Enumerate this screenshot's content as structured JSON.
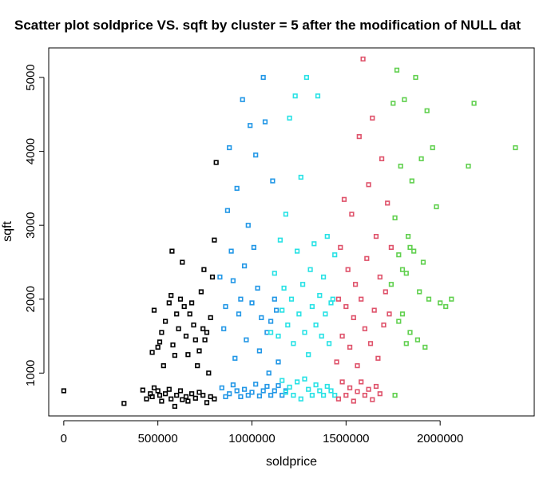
{
  "chart_data": {
    "type": "scatter",
    "title": "Scatter plot soldprice VS. sqft by cluster = 5 after the modification of NULL dat",
    "xlabel": "soldprice",
    "ylabel": "sqft",
    "xlim": [
      -80000,
      2500000
    ],
    "ylim": [
      420,
      5400
    ],
    "x_ticks": [
      0,
      500000,
      1000000,
      1500000,
      2000000
    ],
    "x_tick_labels": [
      "0",
      "500000",
      "1000000",
      "1500000",
      "2000000"
    ],
    "y_ticks": [
      1000,
      2000,
      3000,
      4000,
      5000
    ],
    "y_tick_labels": [
      "1000",
      "2000",
      "3000",
      "4000",
      "5000"
    ],
    "grid": false,
    "legend": "none",
    "series": [
      {
        "color": "#000000",
        "points": [
          [
            0,
            760
          ],
          [
            320,
            590
          ],
          [
            420,
            770
          ],
          [
            440,
            650
          ],
          [
            460,
            720
          ],
          [
            470,
            680
          ],
          [
            480,
            800
          ],
          [
            500,
            760
          ],
          [
            510,
            700
          ],
          [
            520,
            620
          ],
          [
            540,
            720
          ],
          [
            560,
            780
          ],
          [
            570,
            650
          ],
          [
            590,
            550
          ],
          [
            600,
            700
          ],
          [
            620,
            760
          ],
          [
            630,
            640
          ],
          [
            650,
            680
          ],
          [
            660,
            620
          ],
          [
            680,
            720
          ],
          [
            700,
            660
          ],
          [
            720,
            740
          ],
          [
            740,
            700
          ],
          [
            760,
            600
          ],
          [
            780,
            680
          ],
          [
            800,
            650
          ],
          [
            470,
            1280
          ],
          [
            480,
            1850
          ],
          [
            500,
            1350
          ],
          [
            510,
            1420
          ],
          [
            520,
            1550
          ],
          [
            530,
            1100
          ],
          [
            540,
            1700
          ],
          [
            560,
            1950
          ],
          [
            570,
            2050
          ],
          [
            575,
            2650
          ],
          [
            580,
            1380
          ],
          [
            590,
            1240
          ],
          [
            600,
            1800
          ],
          [
            610,
            1600
          ],
          [
            620,
            2000
          ],
          [
            630,
            2500
          ],
          [
            640,
            1900
          ],
          [
            650,
            1500
          ],
          [
            660,
            1250
          ],
          [
            670,
            1800
          ],
          [
            680,
            1950
          ],
          [
            690,
            1650
          ],
          [
            700,
            1450
          ],
          [
            710,
            1100
          ],
          [
            720,
            1300
          ],
          [
            730,
            2100
          ],
          [
            740,
            1600
          ],
          [
            745,
            2400
          ],
          [
            750,
            1450
          ],
          [
            760,
            1550
          ],
          [
            770,
            1000
          ],
          [
            780,
            1750
          ],
          [
            790,
            2300
          ],
          [
            800,
            2800
          ],
          [
            810,
            3850
          ]
        ]
      },
      {
        "color": "#2297e6",
        "points": [
          [
            830,
            2300
          ],
          [
            850,
            1600
          ],
          [
            860,
            1900
          ],
          [
            870,
            3200
          ],
          [
            880,
            4050
          ],
          [
            890,
            2650
          ],
          [
            900,
            2250
          ],
          [
            910,
            1200
          ],
          [
            920,
            3500
          ],
          [
            930,
            1800
          ],
          [
            940,
            2000
          ],
          [
            950,
            4700
          ],
          [
            960,
            2450
          ],
          [
            970,
            1450
          ],
          [
            980,
            3000
          ],
          [
            990,
            4350
          ],
          [
            1000,
            1950
          ],
          [
            1010,
            2700
          ],
          [
            1020,
            3950
          ],
          [
            1030,
            2150
          ],
          [
            1040,
            1300
          ],
          [
            1050,
            1750
          ],
          [
            1060,
            5000
          ],
          [
            1070,
            4400
          ],
          [
            1080,
            1550
          ],
          [
            1090,
            1000
          ],
          [
            1100,
            1700
          ],
          [
            1110,
            3600
          ],
          [
            1120,
            2000
          ],
          [
            1130,
            1850
          ],
          [
            1140,
            1150
          ],
          [
            840,
            800
          ],
          [
            860,
            680
          ],
          [
            880,
            720
          ],
          [
            900,
            840
          ],
          [
            920,
            760
          ],
          [
            940,
            680
          ],
          [
            960,
            780
          ],
          [
            980,
            700
          ],
          [
            1000,
            740
          ],
          [
            1020,
            850
          ],
          [
            1040,
            690
          ],
          [
            1060,
            760
          ],
          [
            1080,
            820
          ],
          [
            1100,
            700
          ],
          [
            1120,
            760
          ],
          [
            1140,
            830
          ],
          [
            1160,
            700
          ],
          [
            1180,
            760
          ]
        ]
      },
      {
        "color": "#28e2e5",
        "points": [
          [
            1100,
            1550
          ],
          [
            1120,
            2350
          ],
          [
            1140,
            1500
          ],
          [
            1150,
            2800
          ],
          [
            1160,
            1850
          ],
          [
            1170,
            2150
          ],
          [
            1180,
            3150
          ],
          [
            1190,
            1650
          ],
          [
            1200,
            4450
          ],
          [
            1210,
            2000
          ],
          [
            1220,
            1400
          ],
          [
            1230,
            4750
          ],
          [
            1240,
            2650
          ],
          [
            1250,
            1800
          ],
          [
            1260,
            3650
          ],
          [
            1270,
            2200
          ],
          [
            1280,
            1550
          ],
          [
            1290,
            5000
          ],
          [
            1300,
            1250
          ],
          [
            1310,
            2400
          ],
          [
            1320,
            1900
          ],
          [
            1330,
            2750
          ],
          [
            1340,
            1650
          ],
          [
            1350,
            4750
          ],
          [
            1360,
            2050
          ],
          [
            1370,
            1500
          ],
          [
            1380,
            2300
          ],
          [
            1390,
            1800
          ],
          [
            1400,
            2850
          ],
          [
            1410,
            1400
          ],
          [
            1420,
            1950
          ],
          [
            1430,
            2000
          ],
          [
            1440,
            2600
          ],
          [
            1160,
            900
          ],
          [
            1180,
            740
          ],
          [
            1200,
            810
          ],
          [
            1220,
            700
          ],
          [
            1240,
            880
          ],
          [
            1260,
            650
          ],
          [
            1280,
            920
          ],
          [
            1300,
            780
          ],
          [
            1320,
            700
          ],
          [
            1340,
            840
          ],
          [
            1360,
            760
          ],
          [
            1380,
            700
          ],
          [
            1400,
            820
          ],
          [
            1420,
            760
          ],
          [
            1440,
            700
          ]
        ]
      },
      {
        "color": "#df536b",
        "points": [
          [
            1450,
            1150
          ],
          [
            1460,
            2000
          ],
          [
            1470,
            2700
          ],
          [
            1480,
            1500
          ],
          [
            1490,
            3350
          ],
          [
            1500,
            1900
          ],
          [
            1510,
            2400
          ],
          [
            1520,
            1350
          ],
          [
            1530,
            3150
          ],
          [
            1540,
            1750
          ],
          [
            1550,
            2200
          ],
          [
            1560,
            1100
          ],
          [
            1570,
            4200
          ],
          [
            1580,
            2000
          ],
          [
            1590,
            5250
          ],
          [
            1600,
            1600
          ],
          [
            1610,
            2550
          ],
          [
            1620,
            3550
          ],
          [
            1630,
            1400
          ],
          [
            1640,
            4450
          ],
          [
            1650,
            1850
          ],
          [
            1660,
            2850
          ],
          [
            1670,
            1200
          ],
          [
            1680,
            2300
          ],
          [
            1690,
            3900
          ],
          [
            1700,
            1650
          ],
          [
            1710,
            2100
          ],
          [
            1720,
            3300
          ],
          [
            1730,
            1800
          ],
          [
            1740,
            2700
          ],
          [
            1460,
            650
          ],
          [
            1480,
            880
          ],
          [
            1500,
            700
          ],
          [
            1520,
            800
          ],
          [
            1540,
            620
          ],
          [
            1560,
            750
          ],
          [
            1580,
            880
          ],
          [
            1600,
            700
          ],
          [
            1620,
            780
          ],
          [
            1640,
            640
          ],
          [
            1660,
            820
          ],
          [
            1680,
            720
          ]
        ]
      },
      {
        "color": "#61d04f",
        "points": [
          [
            1740,
            2200
          ],
          [
            1750,
            4650
          ],
          [
            1760,
            3100
          ],
          [
            1770,
            5100
          ],
          [
            1780,
            2600
          ],
          [
            1790,
            3800
          ],
          [
            1800,
            1800
          ],
          [
            1810,
            4700
          ],
          [
            1820,
            2350
          ],
          [
            1830,
            2850
          ],
          [
            1840,
            1550
          ],
          [
            1850,
            3600
          ],
          [
            1860,
            2650
          ],
          [
            1870,
            5000
          ],
          [
            1880,
            1450
          ],
          [
            1890,
            2100
          ],
          [
            1900,
            3900
          ],
          [
            1910,
            2500
          ],
          [
            1920,
            1350
          ],
          [
            1930,
            4550
          ],
          [
            1940,
            2000
          ],
          [
            1960,
            4050
          ],
          [
            1980,
            3250
          ],
          [
            2000,
            1950
          ],
          [
            2030,
            1900
          ],
          [
            2060,
            2000
          ],
          [
            2150,
            3800
          ],
          [
            2180,
            4650
          ],
          [
            2400,
            4050
          ],
          [
            1760,
            700
          ],
          [
            1780,
            1700
          ],
          [
            1800,
            2400
          ],
          [
            1820,
            1400
          ],
          [
            1840,
            2700
          ]
        ]
      }
    ]
  }
}
